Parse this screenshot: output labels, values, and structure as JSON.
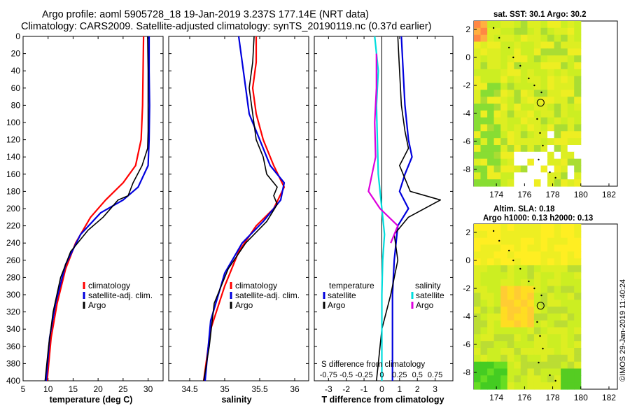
{
  "title_line1": "Argo profile: aoml 5905728_18 19-Jan-2019 3.237S 177.14E (NRT data)",
  "title_line2": "Climatology: CARS2009. Satellite-adjusted climatology: synTS_20190119.nc (0.37d earlier)",
  "timestamp": "©IMOS 29-Jan-2019 11:40:24",
  "colors": {
    "climatology": "#ff0000",
    "satellite": "#0000dd",
    "argo": "#000000",
    "sat_diff_s": "#00dddd",
    "argo_diff_s": "#dd00dd"
  },
  "chart_data": [
    {
      "type": "line",
      "id": "temperature",
      "xlabel": "temperature (deg C)",
      "ylabel": "depth",
      "xlim": [
        5,
        33
      ],
      "ylim": [
        0,
        400
      ],
      "xticks": [
        5,
        10,
        15,
        20,
        25,
        30
      ],
      "yticks": [
        0,
        20,
        40,
        60,
        80,
        100,
        120,
        140,
        160,
        180,
        200,
        220,
        240,
        260,
        280,
        300,
        320,
        340,
        360,
        380,
        400
      ],
      "legend": [
        "climatology",
        "satellite-adj. clim.",
        "Argo"
      ],
      "legend_position": "lower-right",
      "series": [
        {
          "name": "climatology",
          "color": "#ff0000",
          "width": 2.2,
          "points": [
            [
              29.1,
              0
            ],
            [
              29.0,
              40
            ],
            [
              28.9,
              80
            ],
            [
              28.6,
              120
            ],
            [
              27.5,
              150
            ],
            [
              25.0,
              170
            ],
            [
              21.5,
              190
            ],
            [
              18.5,
              210
            ],
            [
              15.5,
              240
            ],
            [
              13.5,
              270
            ],
            [
              11.8,
              310
            ],
            [
              10.6,
              350
            ],
            [
              9.8,
              400
            ]
          ]
        },
        {
          "name": "satellite-adj. clim.",
          "color": "#0000dd",
          "width": 2.2,
          "points": [
            [
              30.2,
              0
            ],
            [
              30.2,
              40
            ],
            [
              30.3,
              80
            ],
            [
              30.2,
              120
            ],
            [
              30.0,
              150
            ],
            [
              28.0,
              175
            ],
            [
              25.0,
              190
            ],
            [
              20.5,
              205
            ],
            [
              16.5,
              230
            ],
            [
              13.5,
              265
            ],
            [
              11.5,
              310
            ],
            [
              10.3,
              350
            ],
            [
              9.6,
              400
            ]
          ]
        },
        {
          "name": "Argo",
          "color": "#000000",
          "width": 1.6,
          "points": [
            [
              29.9,
              0
            ],
            [
              30.0,
              40
            ],
            [
              30.0,
              80
            ],
            [
              30.0,
              110
            ],
            [
              29.9,
              130
            ],
            [
              28.8,
              150
            ],
            [
              27.0,
              170
            ],
            [
              26.0,
              185
            ],
            [
              24.0,
              190
            ],
            [
              21.0,
              210
            ],
            [
              18.0,
              225
            ],
            [
              14.5,
              250
            ],
            [
              12.5,
              280
            ],
            [
              11.0,
              320
            ],
            [
              10.1,
              360
            ],
            [
              9.4,
              400
            ]
          ]
        }
      ]
    },
    {
      "type": "line",
      "id": "salinity",
      "xlabel": "salinity",
      "xlim": [
        34.2,
        36.2
      ],
      "ylim": [
        0,
        400
      ],
      "xticks": [
        34.5,
        35,
        35.5,
        36
      ],
      "legend": [
        "climatology",
        "satellite-adj. clim.",
        "Argo"
      ],
      "legend_position": "lower-right",
      "series": [
        {
          "name": "climatology",
          "color": "#ff0000",
          "width": 2.2,
          "points": [
            [
              35.45,
              0
            ],
            [
              35.45,
              30
            ],
            [
              35.4,
              60
            ],
            [
              35.45,
              90
            ],
            [
              35.55,
              120
            ],
            [
              35.7,
              150
            ],
            [
              35.85,
              175
            ],
            [
              35.7,
              200
            ],
            [
              35.45,
              220
            ],
            [
              35.2,
              250
            ],
            [
              35.0,
              290
            ],
            [
              34.8,
              340
            ],
            [
              34.7,
              400
            ]
          ]
        },
        {
          "name": "satellite-adj. clim.",
          "color": "#0000dd",
          "width": 2.2,
          "points": [
            [
              35.2,
              0
            ],
            [
              35.25,
              30
            ],
            [
              35.3,
              60
            ],
            [
              35.35,
              90
            ],
            [
              35.5,
              120
            ],
            [
              35.65,
              150
            ],
            [
              35.85,
              170
            ],
            [
              35.8,
              190
            ],
            [
              35.55,
              215
            ],
            [
              35.25,
              240
            ],
            [
              35.0,
              275
            ],
            [
              34.8,
              330
            ],
            [
              34.72,
              400
            ]
          ]
        },
        {
          "name": "Argo",
          "color": "#000000",
          "width": 1.6,
          "points": [
            [
              35.42,
              0
            ],
            [
              35.4,
              30
            ],
            [
              35.35,
              60
            ],
            [
              35.4,
              90
            ],
            [
              35.45,
              120
            ],
            [
              35.55,
              140
            ],
            [
              35.6,
              160
            ],
            [
              35.75,
              175
            ],
            [
              35.7,
              185
            ],
            [
              35.75,
              195
            ],
            [
              35.6,
              215
            ],
            [
              35.3,
              240
            ],
            [
              35.05,
              270
            ],
            [
              34.85,
              310
            ],
            [
              34.78,
              360
            ],
            [
              34.7,
              400
            ]
          ]
        }
      ]
    },
    {
      "type": "line",
      "id": "differences",
      "xlabel": "T difference from climatology",
      "xlim": [
        -3.8,
        4.0
      ],
      "ylim": [
        0,
        400
      ],
      "xticks": [
        -3,
        -2,
        -1,
        0,
        1,
        2,
        3
      ],
      "secondary_axis_label": "S difference from climatology",
      "secondary_ticks": [
        "-0.75",
        "-0.5",
        "-0.25",
        "0",
        "0.25",
        "0.5",
        "0.75"
      ],
      "legend_left_title": "temperature",
      "legend_right_title": "salinity",
      "legend_left": [
        "satellite",
        "Argo"
      ],
      "legend_right": [
        "satellite",
        "Argo"
      ],
      "series": [
        {
          "name": "T satellite",
          "color": "#0000dd",
          "width": 2.2,
          "points": [
            [
              1.1,
              0
            ],
            [
              1.2,
              40
            ],
            [
              1.3,
              80
            ],
            [
              1.5,
              120
            ],
            [
              1.7,
              140
            ],
            [
              1.3,
              160
            ],
            [
              1.0,
              180
            ],
            [
              1.5,
              200
            ],
            [
              0.9,
              220
            ],
            [
              0.7,
              260
            ],
            [
              0.6,
              300
            ],
            [
              0.6,
              400
            ]
          ]
        },
        {
          "name": "T Argo",
          "color": "#000000",
          "width": 1.6,
          "points": [
            [
              0.9,
              0
            ],
            [
              1.0,
              40
            ],
            [
              1.1,
              80
            ],
            [
              1.3,
              110
            ],
            [
              1.5,
              130
            ],
            [
              1.0,
              150
            ],
            [
              1.6,
              180
            ],
            [
              3.3,
              190
            ],
            [
              1.5,
              210
            ],
            [
              0.7,
              230
            ],
            [
              0.9,
              260
            ],
            [
              0.5,
              300
            ],
            [
              0.0,
              340
            ],
            [
              -0.2,
              380
            ],
            [
              -0.3,
              400
            ]
          ]
        },
        {
          "name": "S satellite",
          "color": "#00dddd",
          "width": 2.2,
          "points": [
            [
              -0.4,
              0
            ],
            [
              -0.2,
              40
            ],
            [
              -0.3,
              80
            ],
            [
              -0.25,
              120
            ],
            [
              -0.2,
              160
            ],
            [
              0.0,
              200
            ],
            [
              0.15,
              230
            ],
            [
              0.05,
              260
            ],
            [
              0.0,
              300
            ],
            [
              0.0,
              400
            ]
          ]
        },
        {
          "name": "S Argo",
          "color": "#dd00dd",
          "width": 2.2,
          "points": [
            [
              -0.3,
              20
            ],
            [
              -0.3,
              60
            ],
            [
              -0.4,
              100
            ],
            [
              -0.35,
              140
            ],
            [
              -0.75,
              180
            ],
            [
              -0.1,
              200
            ],
            [
              0.9,
              220
            ],
            [
              0.5,
              240
            ]
          ]
        }
      ]
    }
  ],
  "maps": [
    {
      "id": "sst",
      "title_line1": "sat. SST: 30.1  Argo: 30.2",
      "title_line2": "",
      "xticks": [
        174,
        176,
        178,
        180,
        182
      ],
      "yticks": [
        2,
        0,
        -2,
        -4,
        -6,
        -8
      ],
      "xlim": [
        172.4,
        182.6
      ],
      "ylim": [
        -9.2,
        2.6
      ]
    },
    {
      "id": "sla",
      "title_line1": "Altim. SLA: 0.18",
      "title_line2": "Argo h1000: 0.13 h2000: 0.13",
      "xticks": [
        174,
        176,
        178,
        180,
        182
      ],
      "yticks": [
        2,
        0,
        -2,
        -4,
        -6,
        -8
      ],
      "xlim": [
        172.4,
        182.6
      ],
      "ylim": [
        -9.2,
        2.6
      ]
    }
  ],
  "argo_position": {
    "lon": 177.14,
    "lat": -3.237
  }
}
